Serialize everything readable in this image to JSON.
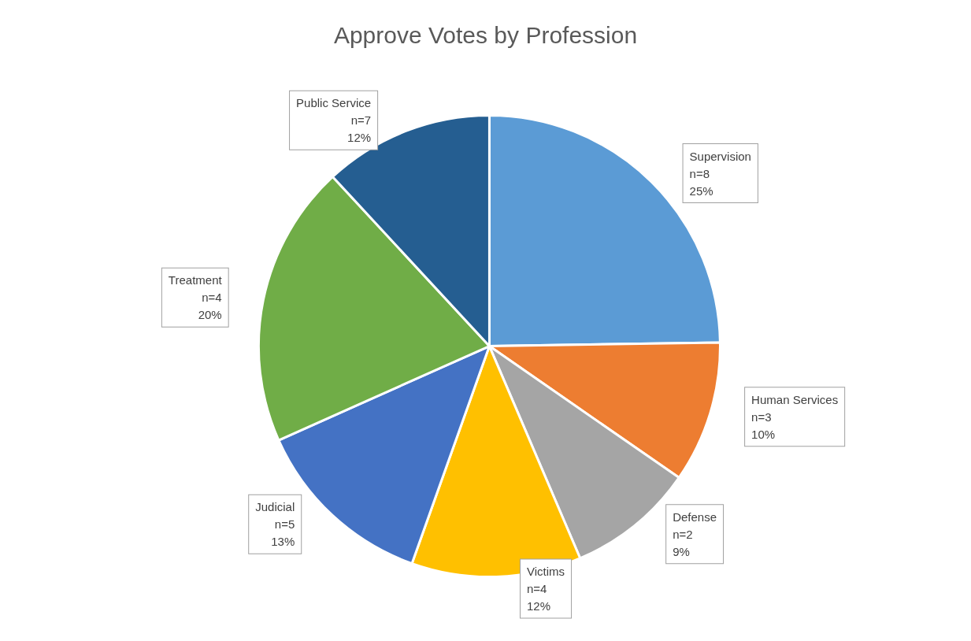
{
  "chart_data": {
    "type": "pie",
    "title": "Approve Votes by Profession",
    "categories": [
      "Supervision",
      "Human Services",
      "Defense",
      "Victims",
      "Judicial",
      "Treatment",
      "Public Service"
    ],
    "values": [
      25,
      10,
      9,
      12,
      13,
      20,
      12
    ],
    "value_labels": [
      "n=8\n25%",
      "n=3\n10%",
      "n=2\n9%",
      "n=4\n12%",
      "n=5\n13%",
      "n=4\n20%",
      "n=7\n12%"
    ],
    "colors": [
      "#5b9bd5",
      "#ed7d31",
      "#a5a5a5",
      "#ffc000",
      "#4472c4",
      "#70ad47",
      "#255e91"
    ],
    "legend": false
  }
}
